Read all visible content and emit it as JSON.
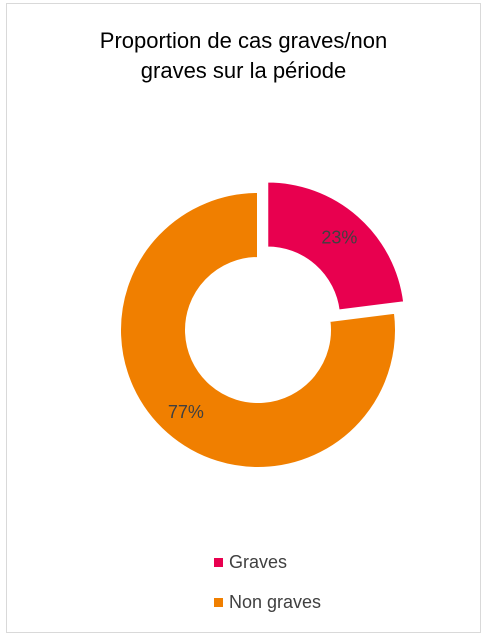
{
  "chart_data": {
    "type": "pie",
    "variant": "donut",
    "title_lines": [
      "Proportion de cas graves/non",
      "graves sur la période"
    ],
    "categories": [
      "Graves",
      "Non graves"
    ],
    "values": [
      23,
      77
    ],
    "labels": [
      "23%",
      "77%"
    ],
    "colors": [
      "#e8004f",
      "#f07f00"
    ],
    "legend_position": "bottom",
    "exploded": "Graves"
  }
}
